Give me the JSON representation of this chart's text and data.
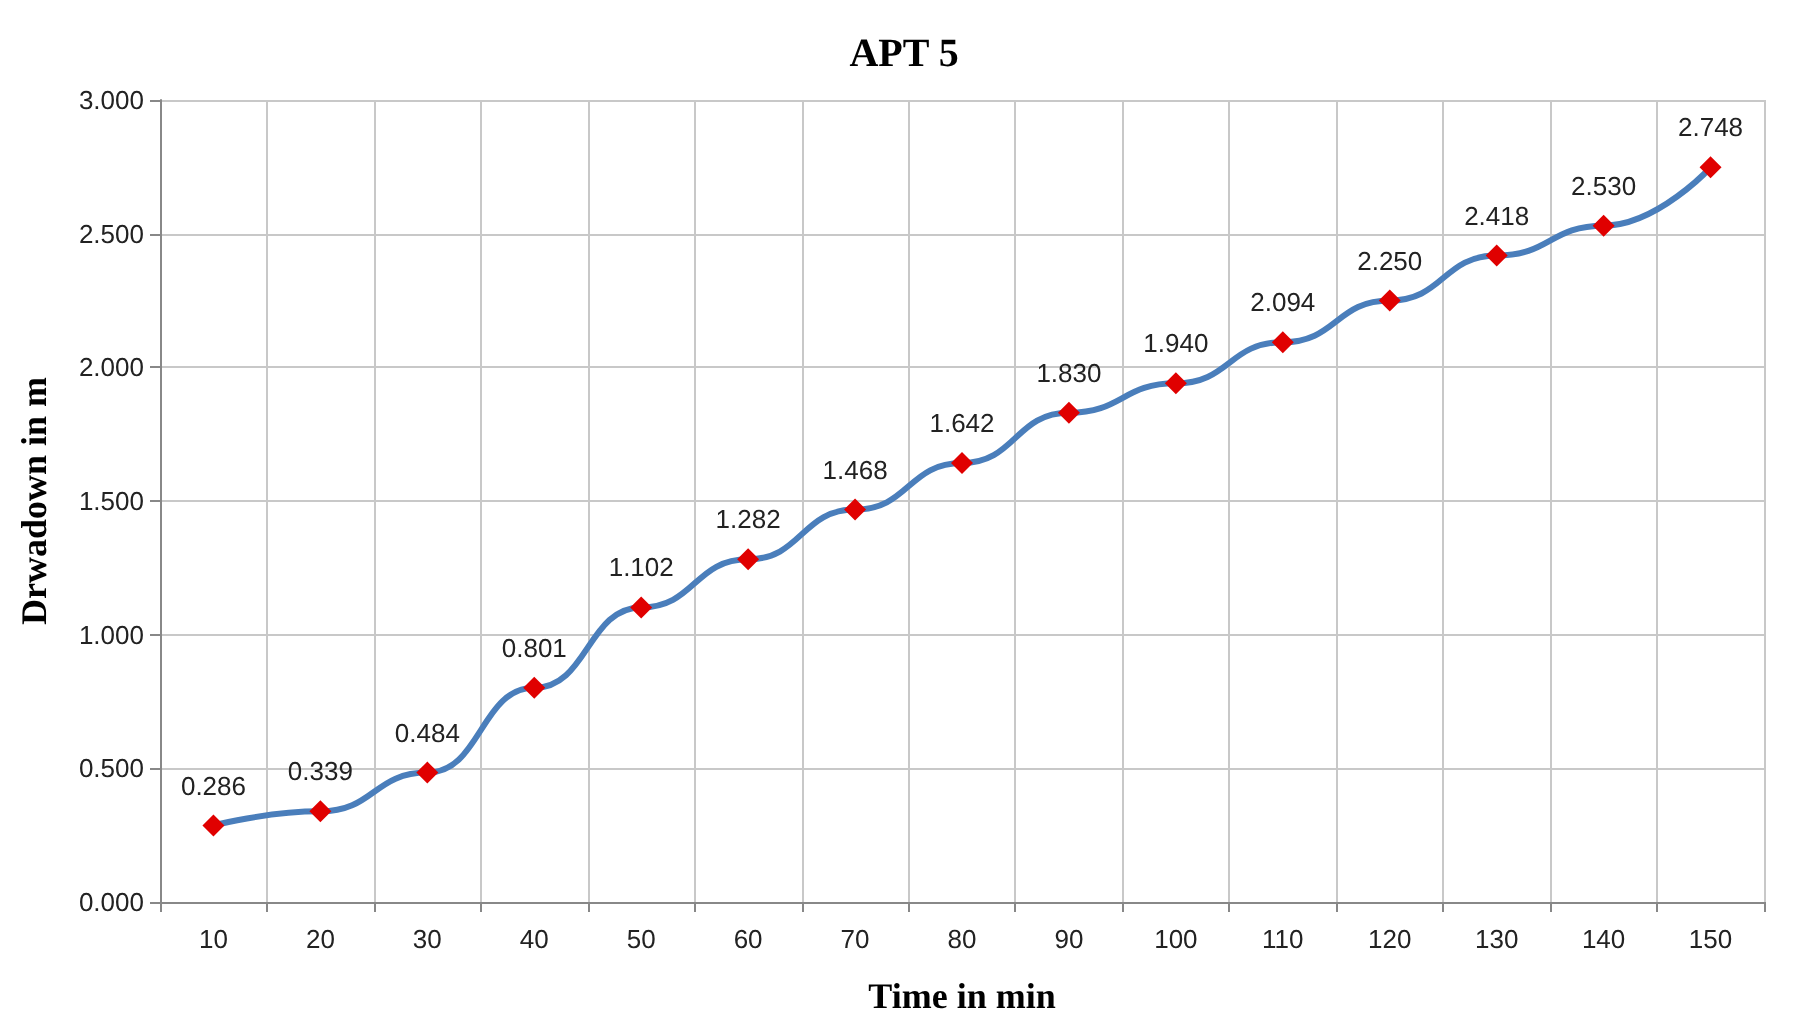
{
  "chart_data": {
    "type": "line",
    "title": "APT 5",
    "xlabel": "Time in min",
    "ylabel": "Drwadown in m",
    "categories": [
      "10",
      "20",
      "30",
      "40",
      "50",
      "60",
      "70",
      "80",
      "90",
      "100",
      "110",
      "120",
      "130",
      "140",
      "150"
    ],
    "series": [
      {
        "color": "#4a7ebb",
        "colors": [
          "#e00000",
          "#e00000",
          "#e00000",
          "#e00000",
          "#e00000",
          "#e00000",
          "#e00000",
          "#e00000",
          "#e00000",
          "#e00000",
          "#e00000",
          "#e00000",
          "#e00000",
          "#e00000",
          "#e00000"
        ],
        "values": [
          0.286,
          0.339,
          0.484,
          0.801,
          1.102,
          1.282,
          1.468,
          1.642,
          1.83,
          1.94,
          2.094,
          2.25,
          2.418,
          2.53,
          2.748
        ],
        "value_labels": [
          "0.286",
          "0.339",
          "0.484",
          "0.801",
          "1.102",
          "1.282",
          "1.468",
          "1.642",
          "1.830",
          "1.940",
          "2.094",
          "2.250",
          "2.418",
          "2.530",
          "2.748"
        ]
      }
    ],
    "ylim": [
      0,
      3
    ],
    "yticks": [
      {
        "value": 0,
        "label": "0.000"
      },
      {
        "value": 0.5,
        "label": "0.500"
      },
      {
        "value": 1,
        "label": "1.000"
      },
      {
        "value": 1.5,
        "label": "1.500"
      },
      {
        "value": 2,
        "label": "2.000"
      },
      {
        "value": 2.5,
        "label": "2.500"
      },
      {
        "value": 3,
        "label": "3.000"
      }
    ],
    "grid": true,
    "marker": "diamond",
    "line_style": "solid"
  }
}
